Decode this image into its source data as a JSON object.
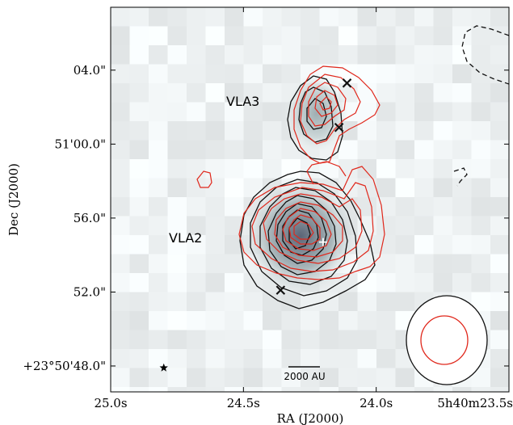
{
  "chart_data": {
    "type": "heatmap",
    "title": "",
    "xlabel": "RA (J2000)",
    "ylabel": "Dec (J2000)",
    "x_ticks": [
      "25.0s",
      "24.5s",
      "24.0s",
      "5h40m23.5s"
    ],
    "x_tick_values_s": [
      25.0,
      24.5,
      24.0,
      23.5
    ],
    "y_ticks": [
      "04.0\"",
      "51'00.0\"",
      "56.0\"",
      "52.0\"",
      "+23°50'48.0\""
    ],
    "y_tick_values_arcsec": [
      64.0,
      60.0,
      56.0,
      52.0,
      48.0
    ],
    "xlim_s": [
      25.0,
      23.5
    ],
    "ylim_arcsec": [
      46.6,
      67.4
    ],
    "sources": [
      {
        "name": "VLA3",
        "ra_s": 24.16,
        "dec_arcsec": 61.6,
        "label": "VLA3"
      },
      {
        "name": "VLA2",
        "ra_s": 24.22,
        "dec_arcsec": 54.6,
        "label": "VLA2"
      }
    ],
    "markers": [
      {
        "type": "cross",
        "ra_s": 24.11,
        "dec_arcsec": 63.3
      },
      {
        "type": "cross",
        "ra_s": 24.14,
        "dec_arcsec": 60.9
      },
      {
        "type": "cross",
        "ra_s": 24.36,
        "dec_arcsec": 52.1
      },
      {
        "type": "plus",
        "ra_s": 24.2,
        "dec_arcsec": 54.7
      },
      {
        "type": "star",
        "ra_s": 24.8,
        "dec_arcsec": 47.9
      }
    ],
    "contour_series": [
      {
        "color": "black",
        "style": "solid"
      },
      {
        "color": "red",
        "style": "solid"
      },
      {
        "color": "black",
        "style": "dashed"
      }
    ],
    "scale_bar": {
      "label": "2000 AU"
    },
    "beam": {
      "color_outer": "black",
      "color_inner": "red"
    },
    "colormap": "gray-teal",
    "grid": false
  },
  "colors": {
    "black_contour": "#111111",
    "red_contour": "#e0271b",
    "background": "#f2f6f6"
  }
}
